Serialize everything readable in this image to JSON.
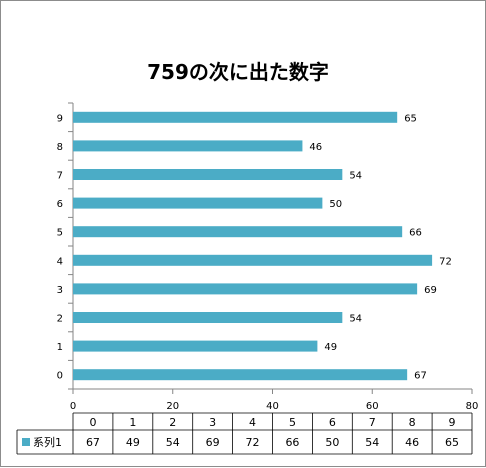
{
  "chart_data": {
    "type": "bar",
    "orientation": "horizontal",
    "title": "759の次に出た数字",
    "categories": [
      "0",
      "1",
      "2",
      "3",
      "4",
      "5",
      "6",
      "7",
      "8",
      "9"
    ],
    "series": [
      {
        "name": "系列1",
        "color": "#4bacc6",
        "values": [
          67,
          49,
          54,
          69,
          72,
          66,
          50,
          54,
          46,
          65
        ]
      }
    ],
    "xlim": [
      0,
      80
    ],
    "xticks": [
      0,
      20,
      40,
      60,
      80
    ],
    "grid": false,
    "data_labels": true,
    "data_table": true,
    "legend_in_table": true
  }
}
